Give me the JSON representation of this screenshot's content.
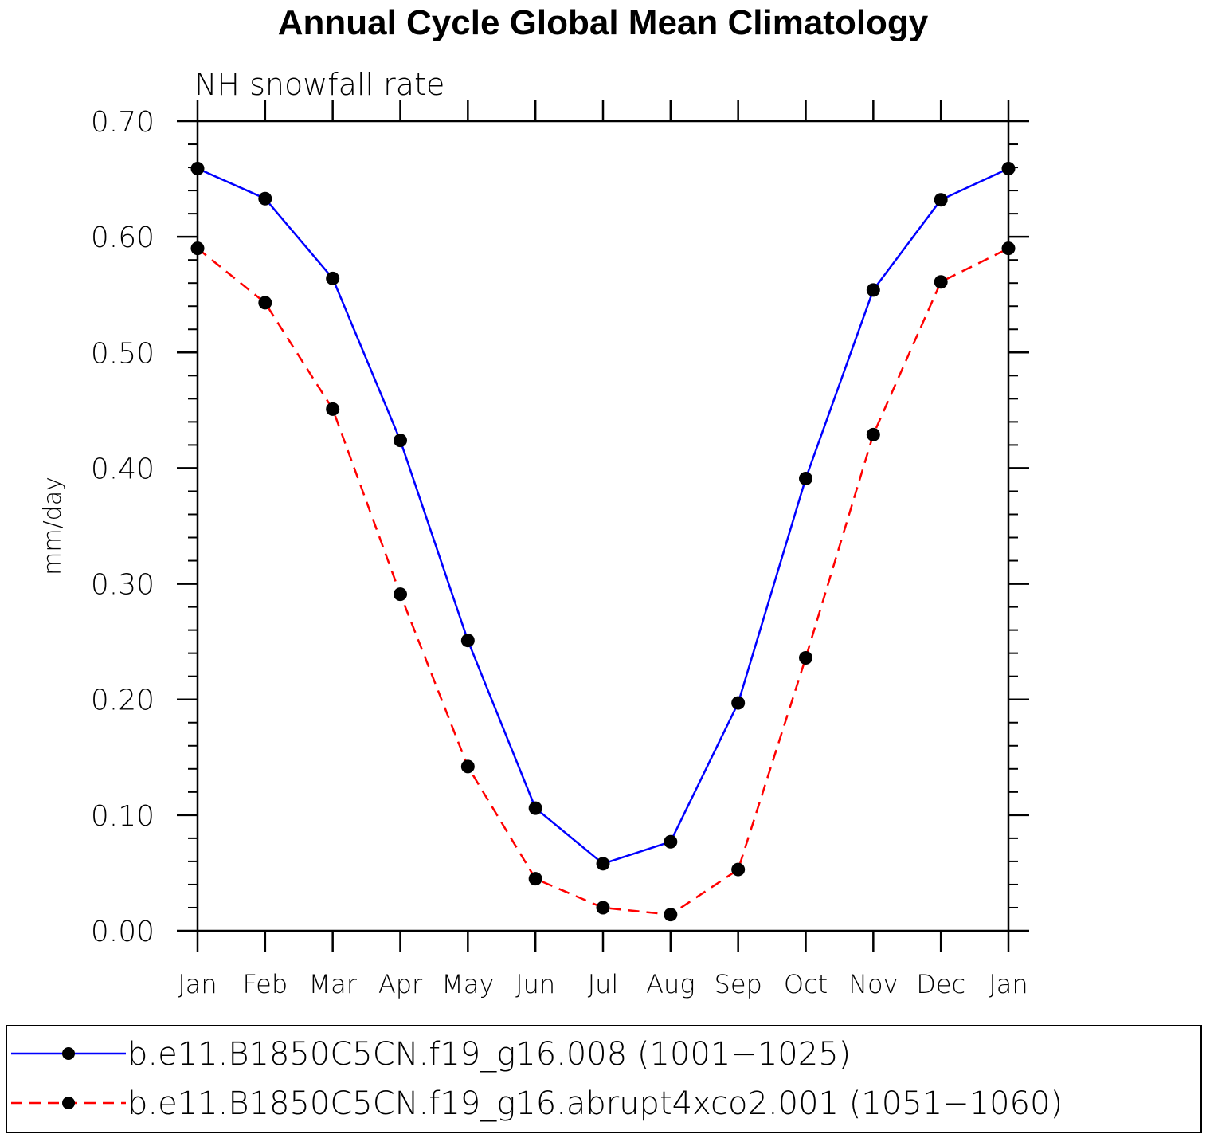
{
  "chart_data": {
    "type": "line",
    "title": "Annual Cycle Global Mean Climatology",
    "subtitle": "NH snowfall rate",
    "xlabel": "",
    "ylabel": "mm/day",
    "ylim": [
      0.0,
      0.7
    ],
    "yticks": [
      "0.00",
      "0.10",
      "0.20",
      "0.30",
      "0.40",
      "0.50",
      "0.60",
      "0.70"
    ],
    "categories": [
      "Jan",
      "Feb",
      "Mar",
      "Apr",
      "May",
      "Jun",
      "Jul",
      "Aug",
      "Sep",
      "Oct",
      "Nov",
      "Dec",
      "Jan"
    ],
    "grid": false,
    "legend_position": "bottom",
    "series": [
      {
        "name": "b.e11.B1850C5CN.f19_g16.008 (1001−1025)",
        "color": "#0000ff",
        "dash": "solid",
        "values": [
          0.659,
          0.633,
          0.564,
          0.424,
          0.251,
          0.106,
          0.058,
          0.077,
          0.197,
          0.391,
          0.554,
          0.632,
          0.659
        ]
      },
      {
        "name": "b.e11.B1850C5CN.f19_g16.abrupt4xco2.001 (1051−1060)",
        "color": "#ff0000",
        "dash": "dashed",
        "values": [
          0.59,
          0.543,
          0.451,
          0.291,
          0.142,
          0.045,
          0.02,
          0.014,
          0.053,
          0.236,
          0.429,
          0.561,
          0.59
        ]
      }
    ]
  }
}
